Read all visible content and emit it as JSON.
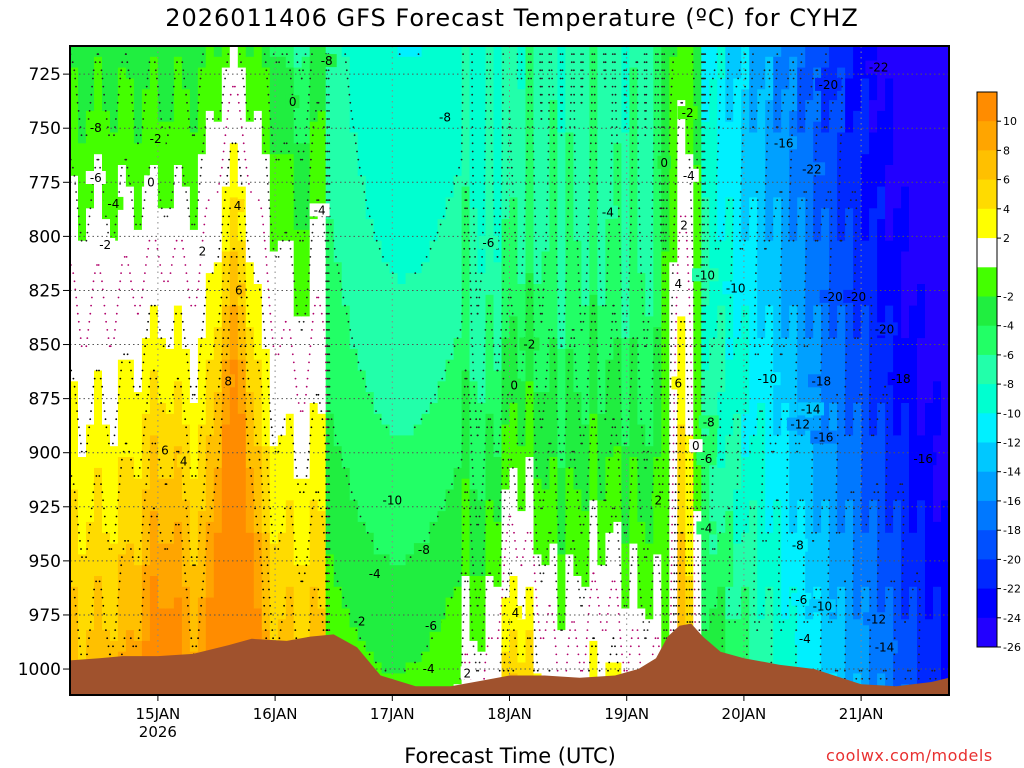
{
  "title": "2026011406 GFS Forecast Temperature (ºC) for CYHZ",
  "xlabel": "Forecast Time (UTC)",
  "credit": "coolwx.com/models",
  "chart_data": {
    "type": "heatmap",
    "title": "2026011406 GFS Forecast Temperature (ºC) for CYHZ",
    "xlabel": "Forecast Time (UTC)",
    "ylabel": "",
    "x_ticks": [
      "15JAN",
      "16JAN",
      "17JAN",
      "18JAN",
      "19JAN",
      "20JAN",
      "21JAN"
    ],
    "x_tick_sub": "2026",
    "xlim_days": [
      14.25,
      21.75
    ],
    "y_ticks": [
      725,
      750,
      775,
      800,
      825,
      850,
      875,
      900,
      925,
      950,
      975,
      1000
    ],
    "ylim": [
      712,
      1012
    ],
    "y_reversed": true,
    "colorbar": {
      "ticks": [
        10,
        8,
        6,
        4,
        2,
        -2,
        -4,
        -6,
        -8,
        -10,
        -12,
        -14,
        -16,
        -18,
        -20,
        -22,
        -24,
        -26
      ],
      "bins": [
        {
          "from": 10,
          "to": 12,
          "color": "#ff8c00"
        },
        {
          "from": 8,
          "to": 10,
          "color": "#ffa500"
        },
        {
          "from": 6,
          "to": 8,
          "color": "#ffc000"
        },
        {
          "from": 4,
          "to": 6,
          "color": "#ffdb00"
        },
        {
          "from": 2,
          "to": 4,
          "color": "#ffff00"
        },
        {
          "from": -2,
          "to": 2,
          "color": "#ffffff"
        },
        {
          "from": -4,
          "to": -2,
          "color": "#44ff00"
        },
        {
          "from": -6,
          "to": -4,
          "color": "#20ee40"
        },
        {
          "from": -8,
          "to": -6,
          "color": "#22ff66"
        },
        {
          "from": -10,
          "to": -8,
          "color": "#22ffaa"
        },
        {
          "from": -12,
          "to": -10,
          "color": "#00ffd0"
        },
        {
          "from": -14,
          "to": -12,
          "color": "#00f0ff"
        },
        {
          "from": -16,
          "to": -14,
          "color": "#00c8ff"
        },
        {
          "from": -18,
          "to": -16,
          "color": "#00a0ff"
        },
        {
          "from": -20,
          "to": -18,
          "color": "#0078ff"
        },
        {
          "from": -22,
          "to": -20,
          "color": "#0050ff"
        },
        {
          "from": -24,
          "to": -22,
          "color": "#0028ff"
        },
        {
          "from": -26,
          "to": -24,
          "color": "#0000ff"
        },
        {
          "from": -28,
          "to": -26,
          "color": "#2200ff"
        }
      ]
    },
    "terrain_color": "#a0522d",
    "contour_labels": [
      {
        "text": "-8",
        "t": 14.47,
        "p": 750
      },
      {
        "text": "-2",
        "t": 14.98,
        "p": 755
      },
      {
        "text": "-6",
        "t": 14.47,
        "p": 773
      },
      {
        "text": "-4",
        "t": 14.62,
        "p": 785
      },
      {
        "text": "0",
        "t": 14.94,
        "p": 775
      },
      {
        "text": "-2",
        "t": 14.55,
        "p": 804
      },
      {
        "text": "2",
        "t": 15.38,
        "p": 807
      },
      {
        "text": "4",
        "t": 15.68,
        "p": 786
      },
      {
        "text": "6",
        "t": 15.69,
        "p": 825
      },
      {
        "text": "8",
        "t": 15.6,
        "p": 867
      },
      {
        "text": "6",
        "t": 15.06,
        "p": 899
      },
      {
        "text": "4",
        "t": 15.22,
        "p": 904
      },
      {
        "text": "0",
        "t": 16.15,
        "p": 738
      },
      {
        "text": "-4",
        "t": 16.38,
        "p": 788
      },
      {
        "text": "-8",
        "t": 16.44,
        "p": 719
      },
      {
        "text": "-8",
        "t": 17.45,
        "p": 745
      },
      {
        "text": "-6",
        "t": 17.82,
        "p": 803
      },
      {
        "text": "-2",
        "t": 18.17,
        "p": 850
      },
      {
        "text": "0",
        "t": 18.04,
        "p": 869
      },
      {
        "text": "-10",
        "t": 17.0,
        "p": 922
      },
      {
        "text": "-8",
        "t": 17.27,
        "p": 945
      },
      {
        "text": "-4",
        "t": 16.85,
        "p": 956
      },
      {
        "text": "-2",
        "t": 16.72,
        "p": 978
      },
      {
        "text": "-6",
        "t": 17.33,
        "p": 980
      },
      {
        "text": "-4",
        "t": 17.31,
        "p": 1000
      },
      {
        "text": "2",
        "t": 17.64,
        "p": 1002
      },
      {
        "text": "4",
        "t": 18.05,
        "p": 974
      },
      {
        "text": "-4",
        "t": 18.84,
        "p": 789
      },
      {
        "text": "0",
        "t": 19.32,
        "p": 766
      },
      {
        "text": "-2",
        "t": 19.52,
        "p": 743
      },
      {
        "text": "-4",
        "t": 19.53,
        "p": 772
      },
      {
        "text": "2",
        "t": 19.49,
        "p": 795
      },
      {
        "text": "4",
        "t": 19.44,
        "p": 822
      },
      {
        "text": "6",
        "t": 19.44,
        "p": 868
      },
      {
        "text": "-10",
        "t": 19.67,
        "p": 818
      },
      {
        "text": "-8",
        "t": 19.7,
        "p": 886
      },
      {
        "text": "0",
        "t": 19.59,
        "p": 897
      },
      {
        "text": "-6",
        "t": 19.68,
        "p": 903
      },
      {
        "text": "2",
        "t": 19.27,
        "p": 922
      },
      {
        "text": "-4",
        "t": 19.68,
        "p": 935
      },
      {
        "text": "-10",
        "t": 19.93,
        "p": 824
      },
      {
        "text": "-16",
        "t": 20.34,
        "p": 757
      },
      {
        "text": "-22",
        "t": 20.58,
        "p": 769
      },
      {
        "text": "-20",
        "t": 20.72,
        "p": 730
      },
      {
        "text": "-22",
        "t": 21.15,
        "p": 722
      },
      {
        "text": "-10",
        "t": 20.2,
        "p": 866
      },
      {
        "text": "-18",
        "t": 20.66,
        "p": 867
      },
      {
        "text": "-14",
        "t": 20.57,
        "p": 880
      },
      {
        "text": "-12",
        "t": 20.48,
        "p": 887
      },
      {
        "text": "-16",
        "t": 20.68,
        "p": 893
      },
      {
        "text": "-20",
        "t": 20.76,
        "p": 828
      },
      {
        "text": "-20",
        "t": 20.96,
        "p": 828
      },
      {
        "text": "-20",
        "t": 21.2,
        "p": 843
      },
      {
        "text": "-18",
        "t": 21.34,
        "p": 866
      },
      {
        "text": "-16",
        "t": 21.53,
        "p": 903
      },
      {
        "text": "-8",
        "t": 20.46,
        "p": 943
      },
      {
        "text": "-6",
        "t": 20.49,
        "p": 968
      },
      {
        "text": "-10",
        "t": 20.67,
        "p": 971
      },
      {
        "text": "-14",
        "t": 21.2,
        "p": 990
      },
      {
        "text": "-12",
        "t": 21.13,
        "p": 977
      },
      {
        "text": "-4",
        "t": 20.52,
        "p": 986
      }
    ]
  }
}
